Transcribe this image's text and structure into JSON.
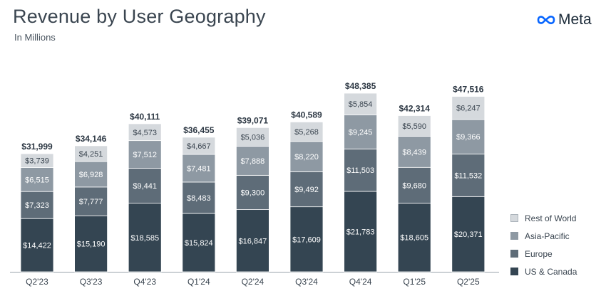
{
  "header": {
    "title": "Revenue by User Geography",
    "subtitle": "In Millions",
    "logo_text": "Meta"
  },
  "chart_data": {
    "type": "bar",
    "stacked": true,
    "title": "Revenue by User Geography",
    "subtitle": "In Millions",
    "categories": [
      "Q2'23",
      "Q3'23",
      "Q4'23",
      "Q1'24",
      "Q2'24",
      "Q3'24",
      "Q4'24",
      "Q1'25",
      "Q2'25"
    ],
    "series": [
      {
        "name": "US & Canada",
        "color": "#344552",
        "values": [
          14422,
          15190,
          18585,
          15824,
          16847,
          17609,
          21783,
          18605,
          20371
        ]
      },
      {
        "name": "Europe",
        "color": "#5e6c78",
        "values": [
          7323,
          7777,
          9441,
          8483,
          9300,
          9492,
          11503,
          9680,
          11532
        ]
      },
      {
        "name": "Asia-Pacific",
        "color": "#8e99a3",
        "values": [
          6515,
          6928,
          7512,
          7481,
          7888,
          8220,
          9245,
          8439,
          9366
        ]
      },
      {
        "name": "Rest of World",
        "color": "#d5d9dd",
        "values": [
          3739,
          4251,
          4573,
          4667,
          5036,
          5268,
          5854,
          5590,
          6247
        ]
      }
    ],
    "totals": [
      31999,
      34146,
      40111,
      36455,
      39071,
      40589,
      48385,
      42314,
      47516
    ],
    "value_labels": [
      [
        "$14,422",
        "$7,323",
        "$6,515",
        "$3,739"
      ],
      [
        "$15,190",
        "$7,777",
        "$6,928",
        "$4,251"
      ],
      [
        "$18,585",
        "$9,441",
        "$7,512",
        "$4,573"
      ],
      [
        "$15,824",
        "$8,483",
        "$7,481",
        "$4,667"
      ],
      [
        "$16,847",
        "$9,300",
        "$7,888",
        "$5,036"
      ],
      [
        "$17,609",
        "$9,492",
        "$8,220",
        "$5,268"
      ],
      [
        "$21,783",
        "$11,503",
        "$9,245",
        "$5,854"
      ],
      [
        "$18,605",
        "$9,680",
        "$8,439",
        "$5,590"
      ],
      [
        "$20,371",
        "$11,532",
        "$9,366",
        "$6,247"
      ]
    ],
    "total_labels": [
      "$31,999",
      "$34,146",
      "$40,111",
      "$36,455",
      "$39,071",
      "$40,589",
      "$48,385",
      "$42,314",
      "$47,516"
    ],
    "ylim": [
      0,
      48385
    ],
    "grid": false,
    "legend": "bottom-right",
    "legend_order": [
      "Rest of World",
      "Asia-Pacific",
      "Europe",
      "US & Canada"
    ]
  }
}
